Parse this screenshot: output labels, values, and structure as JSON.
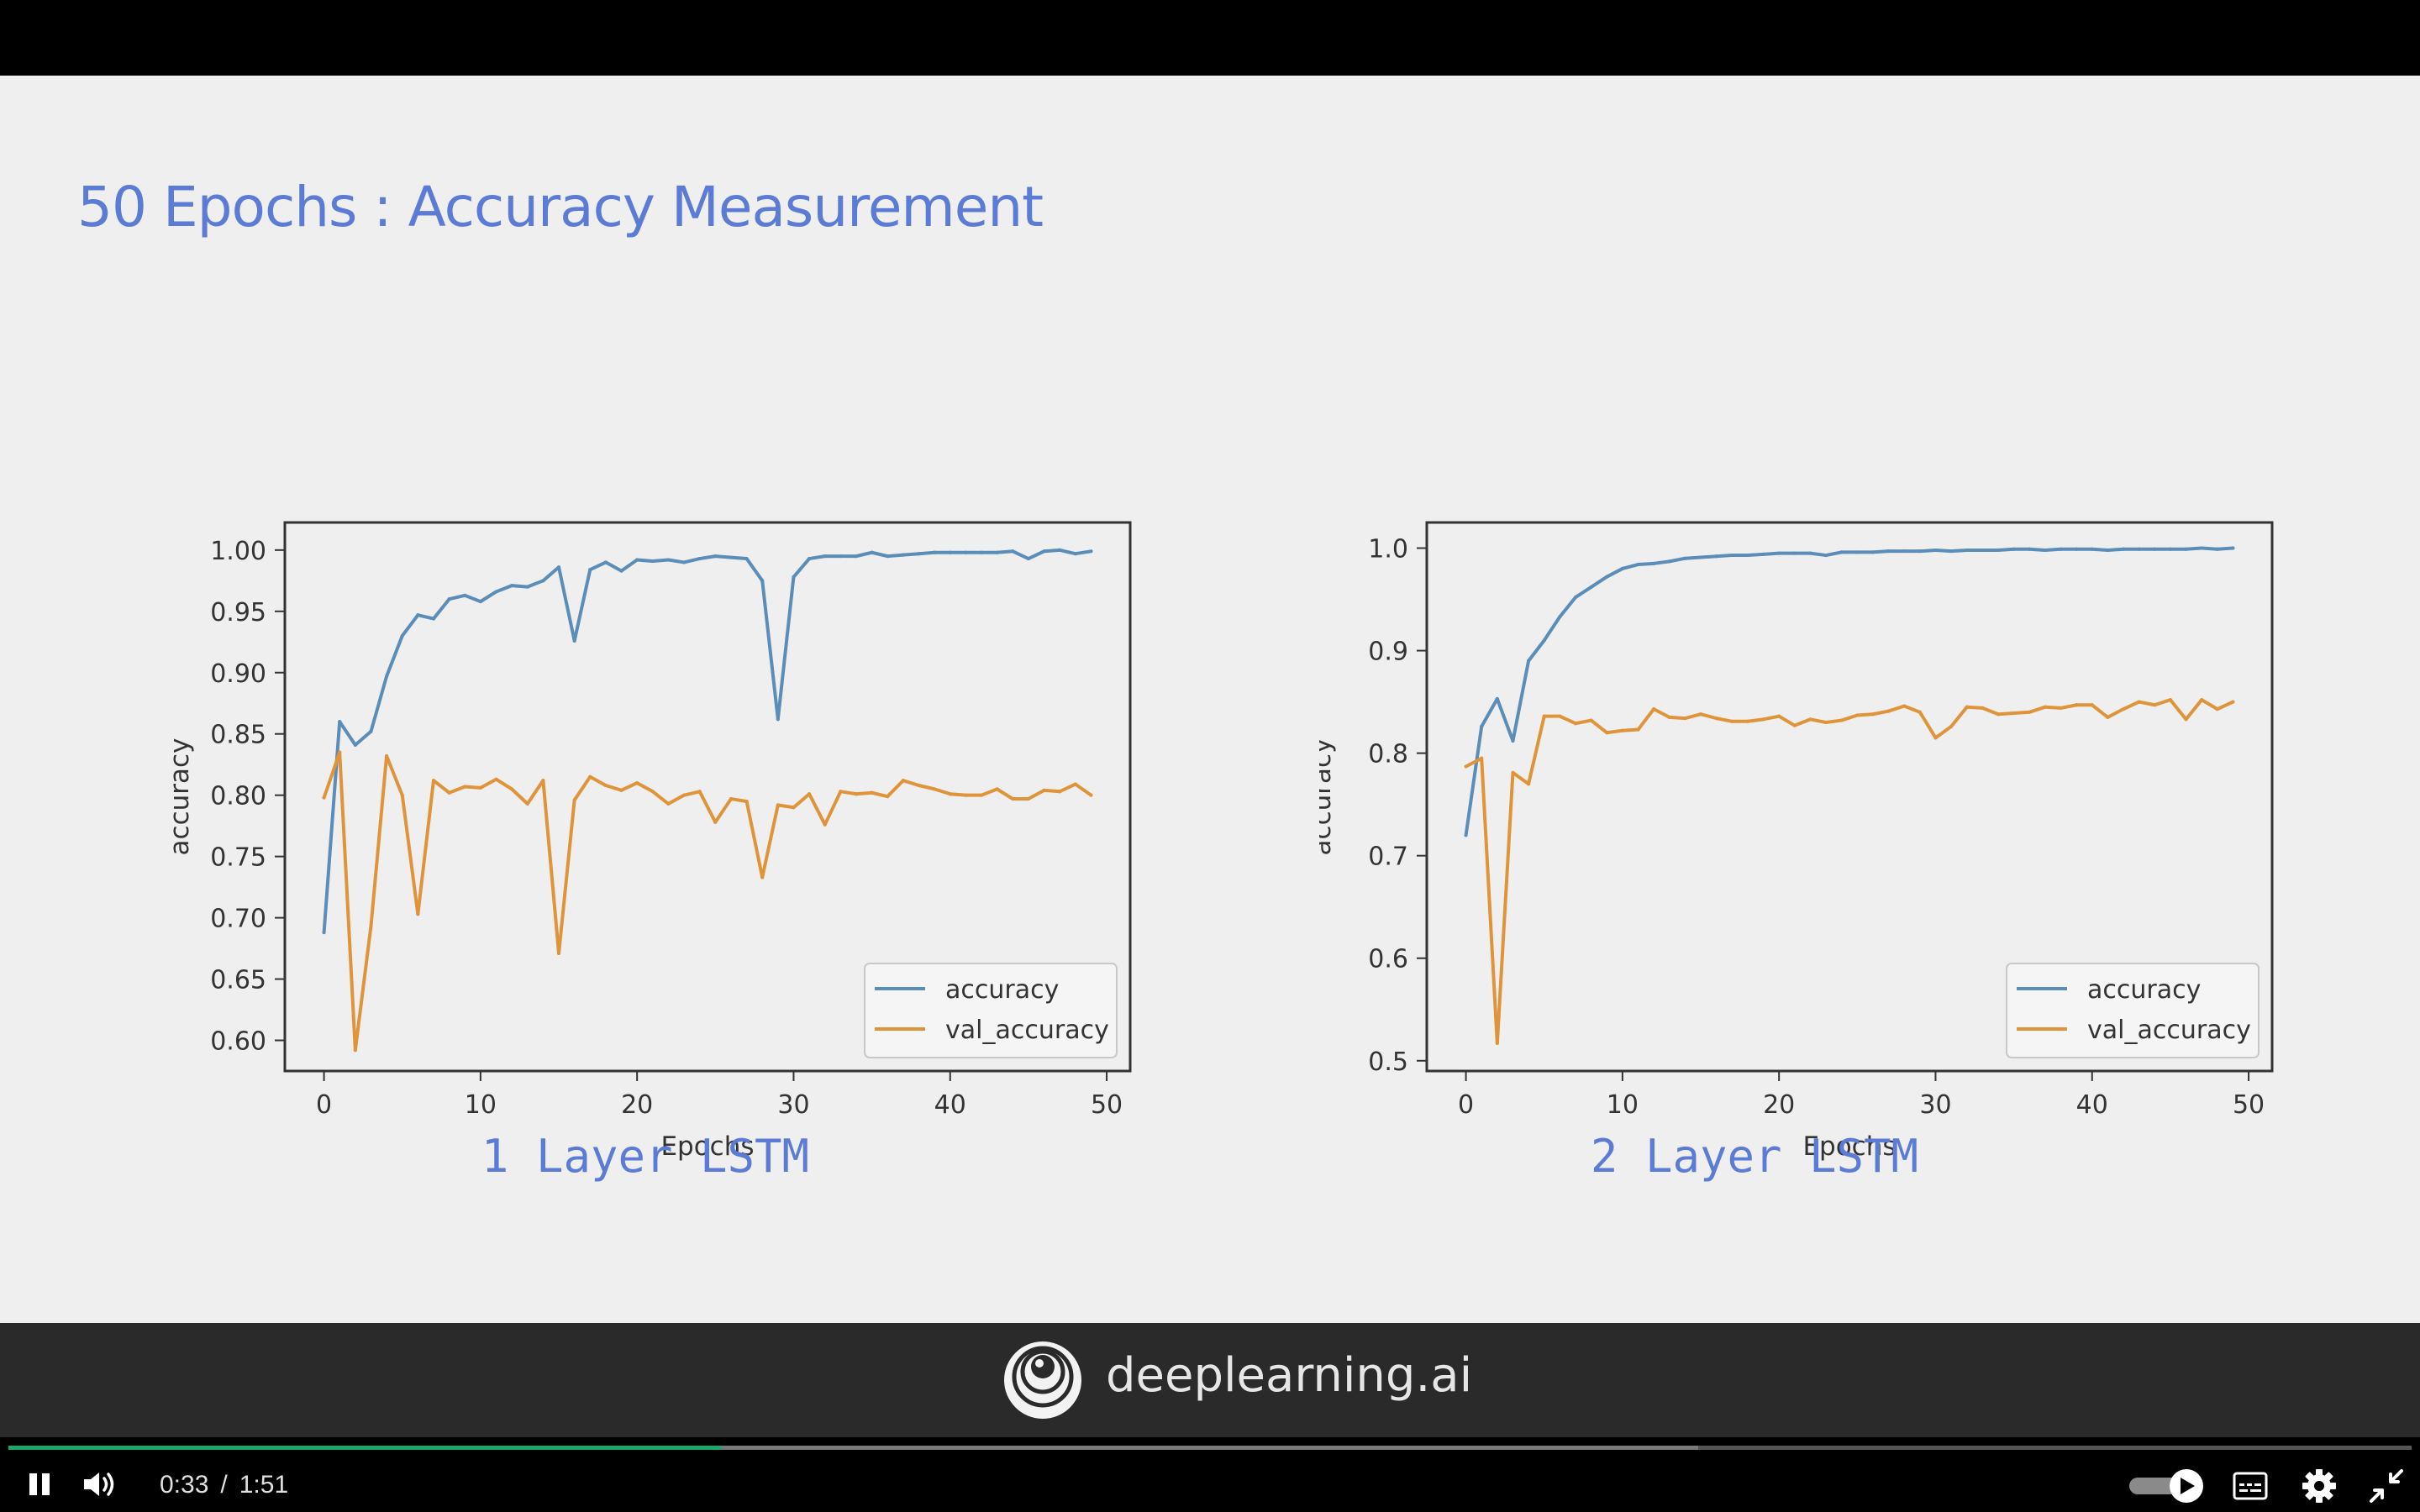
{
  "slide": {
    "title": "50 Epochs : Accuracy Measurement",
    "captions": [
      "1 Layer LSTM",
      "2 Layer LSTM"
    ]
  },
  "colors": {
    "title": "#5b7bd5",
    "accuracy": "#5a8db8",
    "val_accuracy": "#e0943a",
    "progress": "#1aa76b"
  },
  "chart_data": [
    {
      "type": "line",
      "title": "",
      "xlabel": "Epochs",
      "ylabel": "accuracy",
      "xlim": [
        -2.5,
        51.5
      ],
      "ylim": [
        0.575,
        1.0225
      ],
      "xticks": [
        0,
        10,
        20,
        30,
        40,
        50
      ],
      "yticks": [
        0.6,
        0.65,
        0.7,
        0.75,
        0.8,
        0.85,
        0.9,
        0.95,
        1.0
      ],
      "ytick_labels": [
        "0.60",
        "0.65",
        "0.70",
        "0.75",
        "0.80",
        "0.85",
        "0.90",
        "0.95",
        "1.00"
      ],
      "legend_position": "lower right",
      "grid": false,
      "x": [
        0,
        1,
        2,
        3,
        4,
        5,
        6,
        7,
        8,
        9,
        10,
        11,
        12,
        13,
        14,
        15,
        16,
        17,
        18,
        19,
        20,
        21,
        22,
        23,
        24,
        25,
        26,
        27,
        28,
        29,
        30,
        31,
        32,
        33,
        34,
        35,
        36,
        37,
        38,
        39,
        40,
        41,
        42,
        43,
        44,
        45,
        46,
        47,
        48,
        49
      ],
      "series": [
        {
          "name": "accuracy",
          "values": [
            0.688,
            0.86,
            0.841,
            0.852,
            0.897,
            0.93,
            0.947,
            0.944,
            0.96,
            0.963,
            0.958,
            0.966,
            0.971,
            0.97,
            0.975,
            0.986,
            0.926,
            0.984,
            0.99,
            0.983,
            0.992,
            0.991,
            0.992,
            0.99,
            0.993,
            0.995,
            0.994,
            0.993,
            0.975,
            0.862,
            0.978,
            0.993,
            0.995,
            0.995,
            0.995,
            0.998,
            0.995,
            0.996,
            0.997,
            0.998,
            0.998,
            0.998,
            0.998,
            0.998,
            0.999,
            0.993,
            0.999,
            1.0,
            0.997,
            0.999
          ]
        },
        {
          "name": "val_accuracy",
          "values": [
            0.798,
            0.835,
            0.592,
            0.693,
            0.832,
            0.8,
            0.703,
            0.812,
            0.802,
            0.807,
            0.806,
            0.813,
            0.805,
            0.793,
            0.812,
            0.671,
            0.796,
            0.815,
            0.808,
            0.804,
            0.81,
            0.803,
            0.793,
            0.8,
            0.803,
            0.778,
            0.797,
            0.795,
            0.733,
            0.792,
            0.79,
            0.801,
            0.776,
            0.803,
            0.801,
            0.802,
            0.799,
            0.812,
            0.808,
            0.805,
            0.801,
            0.8,
            0.8,
            0.805,
            0.797,
            0.797,
            0.804,
            0.803,
            0.809,
            0.8
          ]
        }
      ]
    },
    {
      "type": "line",
      "title": "",
      "xlabel": "Epochs",
      "ylabel": "accuracy",
      "xlim": [
        -2.5,
        51.5
      ],
      "ylim": [
        0.49,
        1.025
      ],
      "xticks": [
        0,
        10,
        20,
        30,
        40,
        50
      ],
      "yticks": [
        0.5,
        0.6,
        0.7,
        0.8,
        0.9,
        1.0
      ],
      "ytick_labels": [
        "0.5",
        "0.6",
        "0.7",
        "0.8",
        "0.9",
        "1.0"
      ],
      "legend_position": "lower right",
      "grid": false,
      "x": [
        0,
        1,
        2,
        3,
        4,
        5,
        6,
        7,
        8,
        9,
        10,
        11,
        12,
        13,
        14,
        15,
        16,
        17,
        18,
        19,
        20,
        21,
        22,
        23,
        24,
        25,
        26,
        27,
        28,
        29,
        30,
        31,
        32,
        33,
        34,
        35,
        36,
        37,
        38,
        39,
        40,
        41,
        42,
        43,
        44,
        45,
        46,
        47,
        48,
        49
      ],
      "series": [
        {
          "name": "accuracy",
          "values": [
            0.72,
            0.826,
            0.853,
            0.812,
            0.89,
            0.91,
            0.933,
            0.952,
            0.962,
            0.972,
            0.98,
            0.984,
            0.985,
            0.987,
            0.99,
            0.991,
            0.992,
            0.993,
            0.993,
            0.994,
            0.995,
            0.995,
            0.995,
            0.993,
            0.996,
            0.996,
            0.996,
            0.997,
            0.997,
            0.997,
            0.998,
            0.997,
            0.998,
            0.998,
            0.998,
            0.999,
            0.999,
            0.998,
            0.999,
            0.999,
            0.999,
            0.998,
            0.999,
            0.999,
            0.999,
            0.999,
            0.999,
            1.0,
            0.999,
            1.0
          ]
        },
        {
          "name": "val_accuracy",
          "values": [
            0.787,
            0.795,
            0.517,
            0.781,
            0.77,
            0.836,
            0.836,
            0.829,
            0.832,
            0.82,
            0.822,
            0.823,
            0.843,
            0.835,
            0.834,
            0.838,
            0.834,
            0.831,
            0.831,
            0.833,
            0.836,
            0.827,
            0.833,
            0.83,
            0.832,
            0.837,
            0.838,
            0.841,
            0.846,
            0.84,
            0.815,
            0.826,
            0.845,
            0.844,
            0.838,
            0.839,
            0.84,
            0.845,
            0.844,
            0.847,
            0.847,
            0.835,
            0.843,
            0.85,
            0.847,
            0.852,
            0.833,
            0.852,
            0.843,
            0.85
          ]
        }
      ]
    }
  ],
  "brand": {
    "name": "deeplearning.ai",
    "logo_icon": "deeplearning-logo-icon"
  },
  "player": {
    "current_time": "0:33",
    "separator": "/",
    "duration": "1:51",
    "progress": 0.297,
    "buffered": 0.703,
    "icons": [
      "pause-icon",
      "volume-icon",
      "autoplay-toggle-icon",
      "closed-captions-icon",
      "gear-icon",
      "exit-fullscreen-icon"
    ]
  }
}
